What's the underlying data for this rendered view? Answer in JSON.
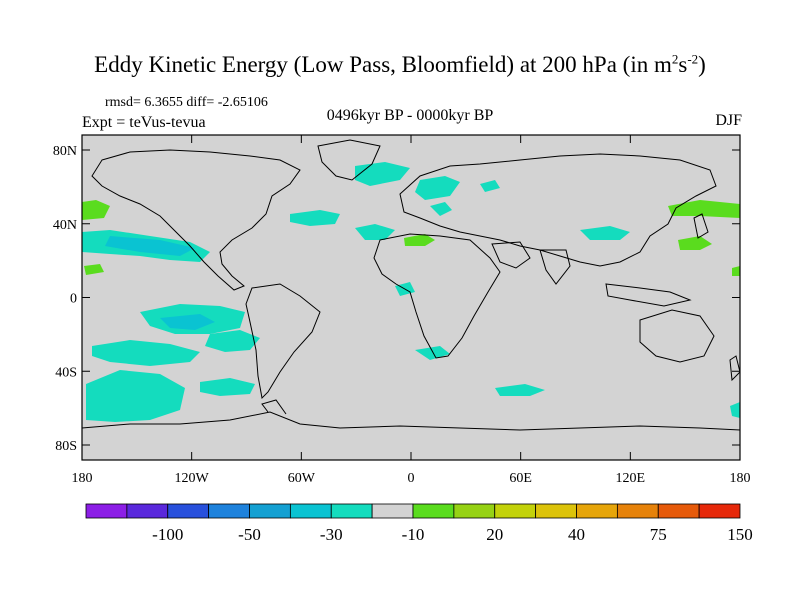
{
  "title": {
    "main": "Eddy Kinetic Energy (Low Pass, Bloomfield) at 200 hPa (in m",
    "sup1": "2",
    "mid": "s",
    "sup2": "-2",
    "end": ")"
  },
  "stats": "rmsd= 6.3655 diff= -2.65106",
  "period": "0496kyr BP - 0000kyr BP",
  "expt": "Expt = teVus-tevua",
  "season": "DJF",
  "map": {
    "background_color": "#d3d3d3",
    "lat_labels": [
      "80N",
      "40N",
      "0",
      "40S",
      "80S"
    ],
    "lat_values": [
      80,
      40,
      0,
      -40,
      -80
    ],
    "lon_labels": [
      "180",
      "120W",
      "60W",
      "0",
      "60E",
      "120E",
      "180"
    ],
    "lon_values": [
      -180,
      -120,
      -60,
      0,
      60,
      120,
      180
    ]
  },
  "colorbar": {
    "colors": [
      "#8c1ee6",
      "#5a28dc",
      "#2850dc",
      "#1e82dc",
      "#14a0d2",
      "#0ac3d2",
      "#14dcbe",
      "#d3d3d3",
      "#5adc1e",
      "#96d214",
      "#c3d20a",
      "#dcc30a",
      "#e6a50a",
      "#e6820a",
      "#e65a0a",
      "#e6280a"
    ],
    "labels": [
      "-100",
      "-50",
      "-30",
      "-10",
      "20",
      "40",
      "75",
      "150"
    ]
  }
}
